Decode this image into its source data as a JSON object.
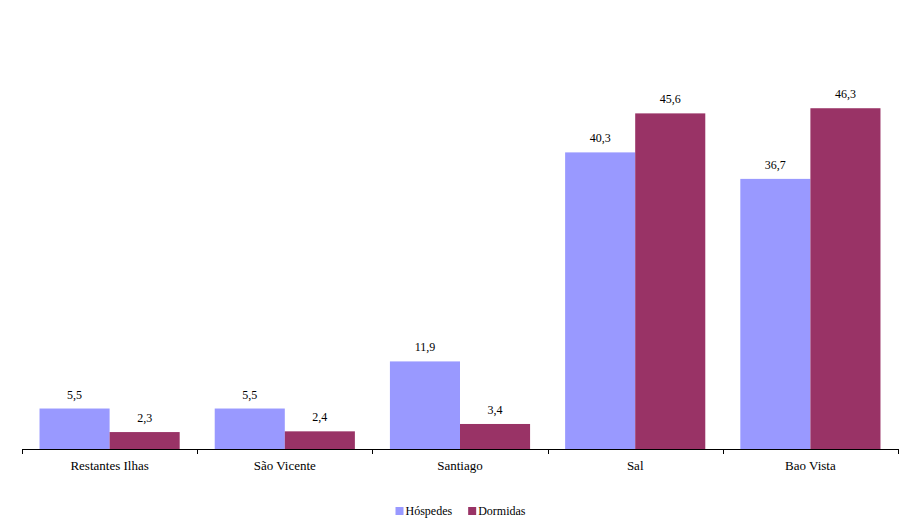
{
  "chart_data": {
    "type": "bar",
    "categories": [
      "Restantes Ilhas",
      "São Vicente",
      "Santiago",
      "Sal",
      "Bao Vista"
    ],
    "series": [
      {
        "name": "Hóspedes",
        "color": "#9999ff",
        "values": [
          5.5,
          5.5,
          11.9,
          40.3,
          36.7
        ],
        "value_labels": [
          "5,5",
          "5,5",
          "11,9",
          "40,3",
          "36,7"
        ]
      },
      {
        "name": "Dormidas",
        "color": "#993366",
        "values": [
          2.3,
          2.4,
          3.4,
          45.6,
          46.3
        ],
        "value_labels": [
          "2,3",
          "2,4",
          "3,4",
          "45,6",
          "46,3"
        ]
      }
    ],
    "ylim": [
      0,
      50
    ],
    "data_labels": true,
    "tick_labels": "x",
    "grid": false,
    "legend": "bottom"
  }
}
